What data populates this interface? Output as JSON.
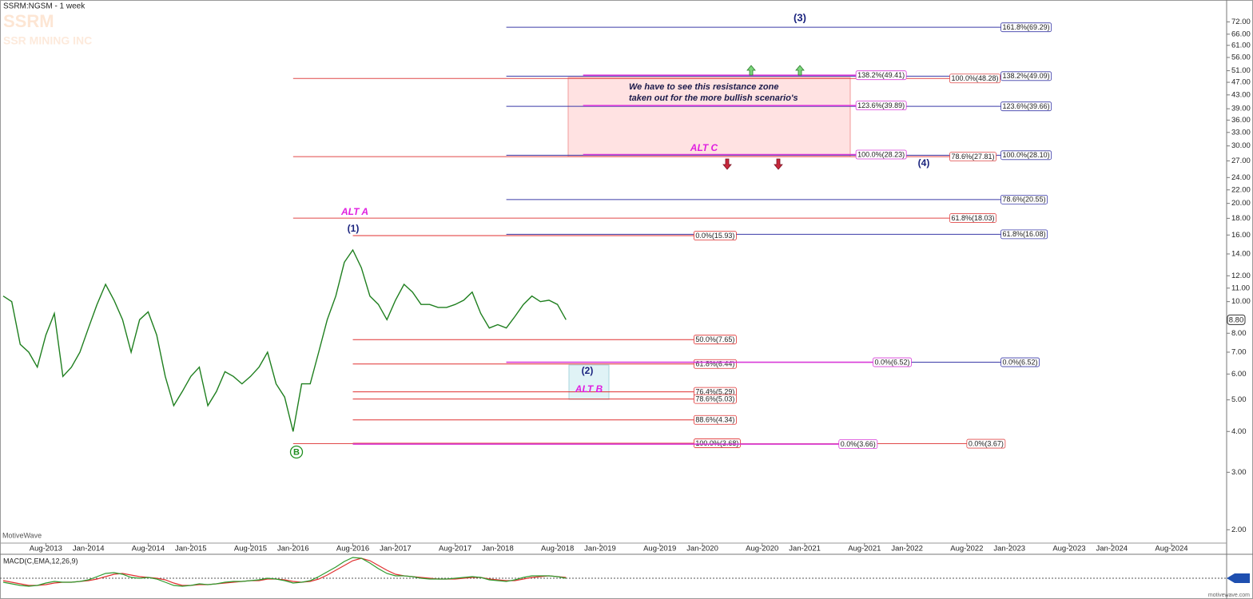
{
  "chart_data": {
    "type": "line",
    "title": "SSRM:NGSM - 1 week",
    "ticker": "SSRM",
    "company": "SSR MINING INC",
    "watermark": "MotiveWave",
    "footer": "motivewave.com",
    "log_scale": true,
    "x": [
      "2013-03",
      "2013-04",
      "2013-05",
      "2013-06",
      "2013-07",
      "2013-08",
      "2013-09",
      "2013-10",
      "2013-11",
      "2013-12",
      "2014-01",
      "2014-02",
      "2014-03",
      "2014-04",
      "2014-05",
      "2014-06",
      "2014-07",
      "2014-08",
      "2014-09",
      "2014-10",
      "2014-11",
      "2014-12",
      "2015-01",
      "2015-02",
      "2015-03",
      "2015-04",
      "2015-05",
      "2015-06",
      "2015-07",
      "2015-08",
      "2015-09",
      "2015-10",
      "2015-11",
      "2015-12",
      "2016-01",
      "2016-02",
      "2016-03",
      "2016-04",
      "2016-05",
      "2016-06",
      "2016-07",
      "2016-08",
      "2016-09",
      "2016-10",
      "2016-11",
      "2016-12",
      "2017-01",
      "2017-02",
      "2017-03",
      "2017-04",
      "2017-05",
      "2017-06",
      "2017-07",
      "2017-08",
      "2017-09",
      "2017-10",
      "2017-11",
      "2017-12",
      "2018-01",
      "2018-02",
      "2018-03",
      "2018-04",
      "2018-05",
      "2018-06",
      "2018-07",
      "2018-08",
      "2018-09"
    ],
    "series": [
      {
        "color": "#1f7f1f",
        "values": [
          10.4,
          10,
          7.4,
          7,
          6.3,
          7.9,
          9.2,
          5.9,
          6.3,
          7,
          8.3,
          9.8,
          11.3,
          10.1,
          8.8,
          7,
          8.8,
          9.3,
          7.9,
          5.9,
          4.8,
          5.3,
          5.9,
          6.3,
          4.8,
          5.3,
          6.1,
          5.9,
          5.6,
          5.9,
          6.3,
          7,
          5.6,
          5.1,
          4,
          5.6,
          5.6,
          7,
          8.8,
          10.4,
          13.2,
          14.4,
          12.7,
          10.4,
          9.8,
          8.8,
          10.1,
          11.3,
          10.7,
          9.8,
          9.8,
          9.6,
          9.6,
          9.8,
          10.1,
          10.7,
          9.2,
          8.3,
          8.5,
          8.3,
          9,
          9.8,
          10.4,
          10,
          10.1,
          9.8,
          8.8
        ]
      }
    ],
    "xlim": [
      "2013-03",
      "2025-02"
    ],
    "xticks": [
      {
        "value": "2013-08",
        "label": "Aug-2013"
      },
      {
        "value": "2014-01",
        "label": "Jan-2014"
      },
      {
        "value": "2014-08",
        "label": "Aug-2014"
      },
      {
        "value": "2015-01",
        "label": "Jan-2015"
      },
      {
        "value": "2015-08",
        "label": "Aug-2015"
      },
      {
        "value": "2016-01",
        "label": "Jan-2016"
      },
      {
        "value": "2016-08",
        "label": "Aug-2016"
      },
      {
        "value": "2017-01",
        "label": "Jan-2017"
      },
      {
        "value": "2017-08",
        "label": "Aug-2017"
      },
      {
        "value": "2018-01",
        "label": "Jan-2018"
      },
      {
        "value": "2018-08",
        "label": "Aug-2018"
      },
      {
        "value": "2019-01",
        "label": "Jan-2019"
      },
      {
        "value": "2019-08",
        "label": "Aug-2019"
      },
      {
        "value": "2020-01",
        "label": "Jan-2020"
      },
      {
        "value": "2020-08",
        "label": "Aug-2020"
      },
      {
        "value": "2021-01",
        "label": "Jan-2021"
      },
      {
        "value": "2021-08",
        "label": "Aug-2021"
      },
      {
        "value": "2022-01",
        "label": "Jan-2022"
      },
      {
        "value": "2022-08",
        "label": "Aug-2022"
      },
      {
        "value": "2023-01",
        "label": "Jan-2023"
      },
      {
        "value": "2023-08",
        "label": "Aug-2023"
      },
      {
        "value": "2024-01",
        "label": "Jan-2024"
      },
      {
        "value": "2024-08",
        "label": "Aug-2024"
      }
    ],
    "ylim": [
      1.82,
      84
    ],
    "yticks": [
      {
        "value": 2,
        "label": "2.00"
      },
      {
        "value": 3,
        "label": "3.00"
      },
      {
        "value": 4,
        "label": "4.00"
      },
      {
        "value": 5,
        "label": "5.00"
      },
      {
        "value": 6,
        "label": "6.00"
      },
      {
        "value": 7,
        "label": "7.00"
      },
      {
        "value": 8,
        "label": "8.00"
      },
      {
        "value": 10,
        "label": "10.00"
      },
      {
        "value": 11,
        "label": "11.00"
      },
      {
        "value": 12,
        "label": "12.00"
      },
      {
        "value": 14,
        "label": "14.00"
      },
      {
        "value": 16,
        "label": "16.00"
      },
      {
        "value": 18,
        "label": "18.00"
      },
      {
        "value": 20,
        "label": "20.00"
      },
      {
        "value": 22,
        "label": "22.00"
      },
      {
        "value": 24,
        "label": "24.00"
      },
      {
        "value": 27,
        "label": "27.00"
      },
      {
        "value": 30,
        "label": "30.00"
      },
      {
        "value": 33,
        "label": "33.00"
      },
      {
        "value": 36,
        "label": "36.00"
      },
      {
        "value": 39,
        "label": "39.00"
      },
      {
        "value": 43,
        "label": "43.00"
      },
      {
        "value": 47,
        "label": "47.00"
      },
      {
        "value": 51,
        "label": "51.00"
      },
      {
        "value": 56,
        "label": "56.00"
      },
      {
        "value": 61,
        "label": "61.00"
      },
      {
        "value": 66,
        "label": "66.00"
      },
      {
        "value": 72,
        "label": "72.00"
      }
    ],
    "last_price": {
      "value": 8.8,
      "label": "8.80"
    },
    "levels": [
      {
        "label": "161.8%(69.29)",
        "value": 69.29,
        "start": "2018-02",
        "end": "2022-12",
        "color": "#3a3aa8"
      },
      {
        "label": "138.2%(49.09)",
        "value": 49.09,
        "start": "2018-02",
        "end": "2022-12",
        "color": "#3a3aa8"
      },
      {
        "label": "123.6%(39.66)",
        "value": 39.66,
        "start": "2018-02",
        "end": "2022-12",
        "color": "#3a3aa8"
      },
      {
        "label": "100.0%(28.10)",
        "value": 28.1,
        "start": "2018-02",
        "end": "2022-12",
        "color": "#3a3aa8"
      },
      {
        "label": "78.6%(20.55)",
        "value": 20.55,
        "start": "2018-02",
        "end": "2022-12",
        "color": "#3a3aa8"
      },
      {
        "label": "61.8%(16.08)",
        "value": 16.08,
        "start": "2018-02",
        "end": "2022-12",
        "color": "#3a3aa8"
      },
      {
        "label": "0.0%(6.52)",
        "value": 6.52,
        "start": "2018-02",
        "end": "2022-12",
        "color": "#3a3aa8"
      },
      {
        "label": "100.0%(48.28)",
        "value": 48.28,
        "start": "2016-01",
        "end": "2022-06",
        "color": "#e04848"
      },
      {
        "label": "78.6%(27.81)",
        "value": 27.81,
        "start": "2016-01",
        "end": "2022-06",
        "color": "#e04848"
      },
      {
        "label": "61.8%(18.03)",
        "value": 18.03,
        "start": "2016-01",
        "end": "2022-06",
        "color": "#e04848"
      },
      {
        "label": "0.0%(3.67)",
        "value": 3.67,
        "start": "2016-01",
        "end": "2022-08",
        "color": "#e04848"
      },
      {
        "label": "0.0%(15.93)",
        "value": 15.93,
        "start": "2016-08",
        "end": "2019-12",
        "color": "#e03030"
      },
      {
        "label": "50.0%(7.65)",
        "value": 7.65,
        "start": "2016-08",
        "end": "2019-12",
        "color": "#e03030"
      },
      {
        "label": "61.8%(6.44)",
        "value": 6.44,
        "start": "2016-08",
        "end": "2019-12",
        "color": "#e03030"
      },
      {
        "label": "76.4%(5.29)",
        "value": 5.29,
        "start": "2016-08",
        "end": "2019-12",
        "color": "#e03030"
      },
      {
        "label": "78.6%(5.03)",
        "value": 5.03,
        "start": "2016-08",
        "end": "2019-12",
        "color": "#e03030"
      },
      {
        "label": "88.6%(4.34)",
        "value": 4.34,
        "start": "2016-08",
        "end": "2019-12",
        "color": "#e03030"
      },
      {
        "label": "100.0%(3.68)",
        "value": 3.68,
        "start": "2016-08",
        "end": "2019-12",
        "color": "#e03030"
      },
      {
        "label": "138.2%(49.41)",
        "value": 49.41,
        "start": "2018-11",
        "end": "2021-07",
        "color": "#d83ad8"
      },
      {
        "label": "123.6%(39.89)",
        "value": 39.89,
        "start": "2018-11",
        "end": "2021-07",
        "color": "#d83ad8"
      },
      {
        "label": "100.0%(28.23)",
        "value": 28.23,
        "start": "2018-11",
        "end": "2021-07",
        "color": "#d83ad8"
      },
      {
        "label": "0.0%(6.52)",
        "value": 6.52,
        "start": "2018-02",
        "end": "2021-09",
        "color": "#d83ad8"
      },
      {
        "label": "0.0%(3.66)",
        "value": 3.66,
        "start": "2016-08",
        "end": "2021-05",
        "color": "#d83ad8"
      }
    ],
    "annotations": [
      {
        "text": "(3)",
        "color": "#1a237e"
      },
      {
        "text": "(1)",
        "color": "#1a237e"
      },
      {
        "text": "(2)",
        "color": "#1a237e"
      },
      {
        "text": "(4)",
        "color": "#1a237e"
      },
      {
        "text": "B",
        "color": "#1f8f1f"
      },
      {
        "text": "ALT A",
        "color": "#e020e0"
      },
      {
        "text": "ALT C",
        "color": "#e020e0"
      },
      {
        "text": "ALT B",
        "color": "#e020e0"
      },
      {
        "text": "We have to see this resistance zone",
        "color": "#1a1a4a"
      },
      {
        "text": "taken out for the more bullish scenario's",
        "color": "#1a1a4a"
      }
    ],
    "macd": {
      "title": "MACD(C,EMA,12,26,9)",
      "ylim": [
        -2.4,
        2.7
      ],
      "macd": {
        "color": "#2e9a2e",
        "values": [
          -0.5,
          -0.7,
          -0.9,
          -1.0,
          -0.9,
          -0.6,
          -0.4,
          -0.5,
          -0.5,
          -0.4,
          -0.2,
          0.2,
          0.6,
          0.7,
          0.5,
          0.1,
          0.0,
          0.1,
          -0.1,
          -0.5,
          -0.9,
          -1.0,
          -0.9,
          -0.7,
          -0.8,
          -0.7,
          -0.5,
          -0.4,
          -0.4,
          -0.3,
          -0.2,
          0.0,
          -0.1,
          -0.3,
          -0.6,
          -0.5,
          -0.3,
          0.2,
          0.8,
          1.4,
          2.1,
          2.6,
          2.5,
          1.9,
          1.2,
          0.6,
          0.3,
          0.3,
          0.2,
          0.0,
          -0.1,
          -0.1,
          -0.1,
          0.0,
          0.1,
          0.2,
          0.1,
          -0.2,
          -0.3,
          -0.4,
          -0.2,
          0.1,
          0.3,
          0.3,
          0.3,
          0.2,
          0.0
        ]
      },
      "signal": {
        "color": "#e03030",
        "values": [
          -0.3,
          -0.5,
          -0.7,
          -0.9,
          -0.9,
          -0.8,
          -0.6,
          -0.5,
          -0.5,
          -0.4,
          -0.3,
          -0.1,
          0.2,
          0.5,
          0.6,
          0.4,
          0.2,
          0.1,
          0.0,
          -0.2,
          -0.6,
          -0.9,
          -0.9,
          -0.8,
          -0.8,
          -0.7,
          -0.6,
          -0.5,
          -0.4,
          -0.3,
          -0.3,
          -0.1,
          -0.1,
          -0.2,
          -0.4,
          -0.5,
          -0.4,
          -0.1,
          0.4,
          1.0,
          1.6,
          2.2,
          2.5,
          2.2,
          1.6,
          1.0,
          0.5,
          0.3,
          0.2,
          0.1,
          0.0,
          -0.1,
          -0.1,
          -0.1,
          0.0,
          0.1,
          0.1,
          -0.1,
          -0.2,
          -0.3,
          -0.3,
          -0.1,
          0.1,
          0.2,
          0.3,
          0.2,
          0.1
        ]
      }
    }
  }
}
